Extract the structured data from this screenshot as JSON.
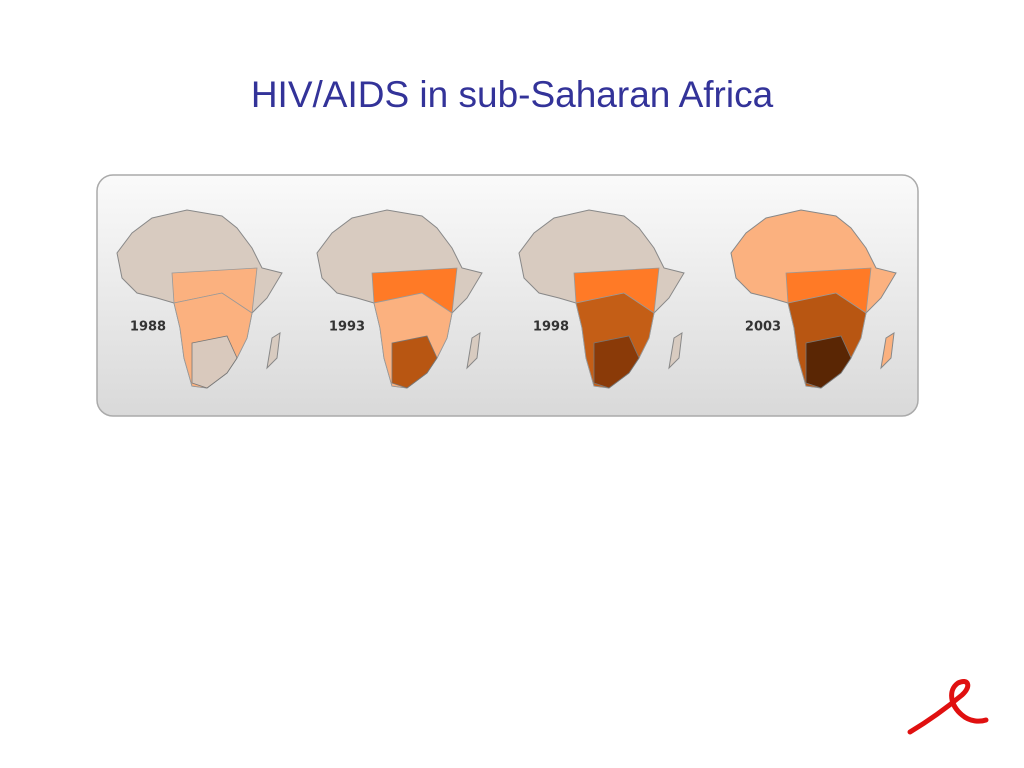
{
  "title": "HIV/AIDS in sub-Saharan Africa",
  "maps": [
    {
      "year": "1988"
    },
    {
      "year": "1993"
    },
    {
      "year": "1998"
    },
    {
      "year": "2003"
    }
  ]
}
